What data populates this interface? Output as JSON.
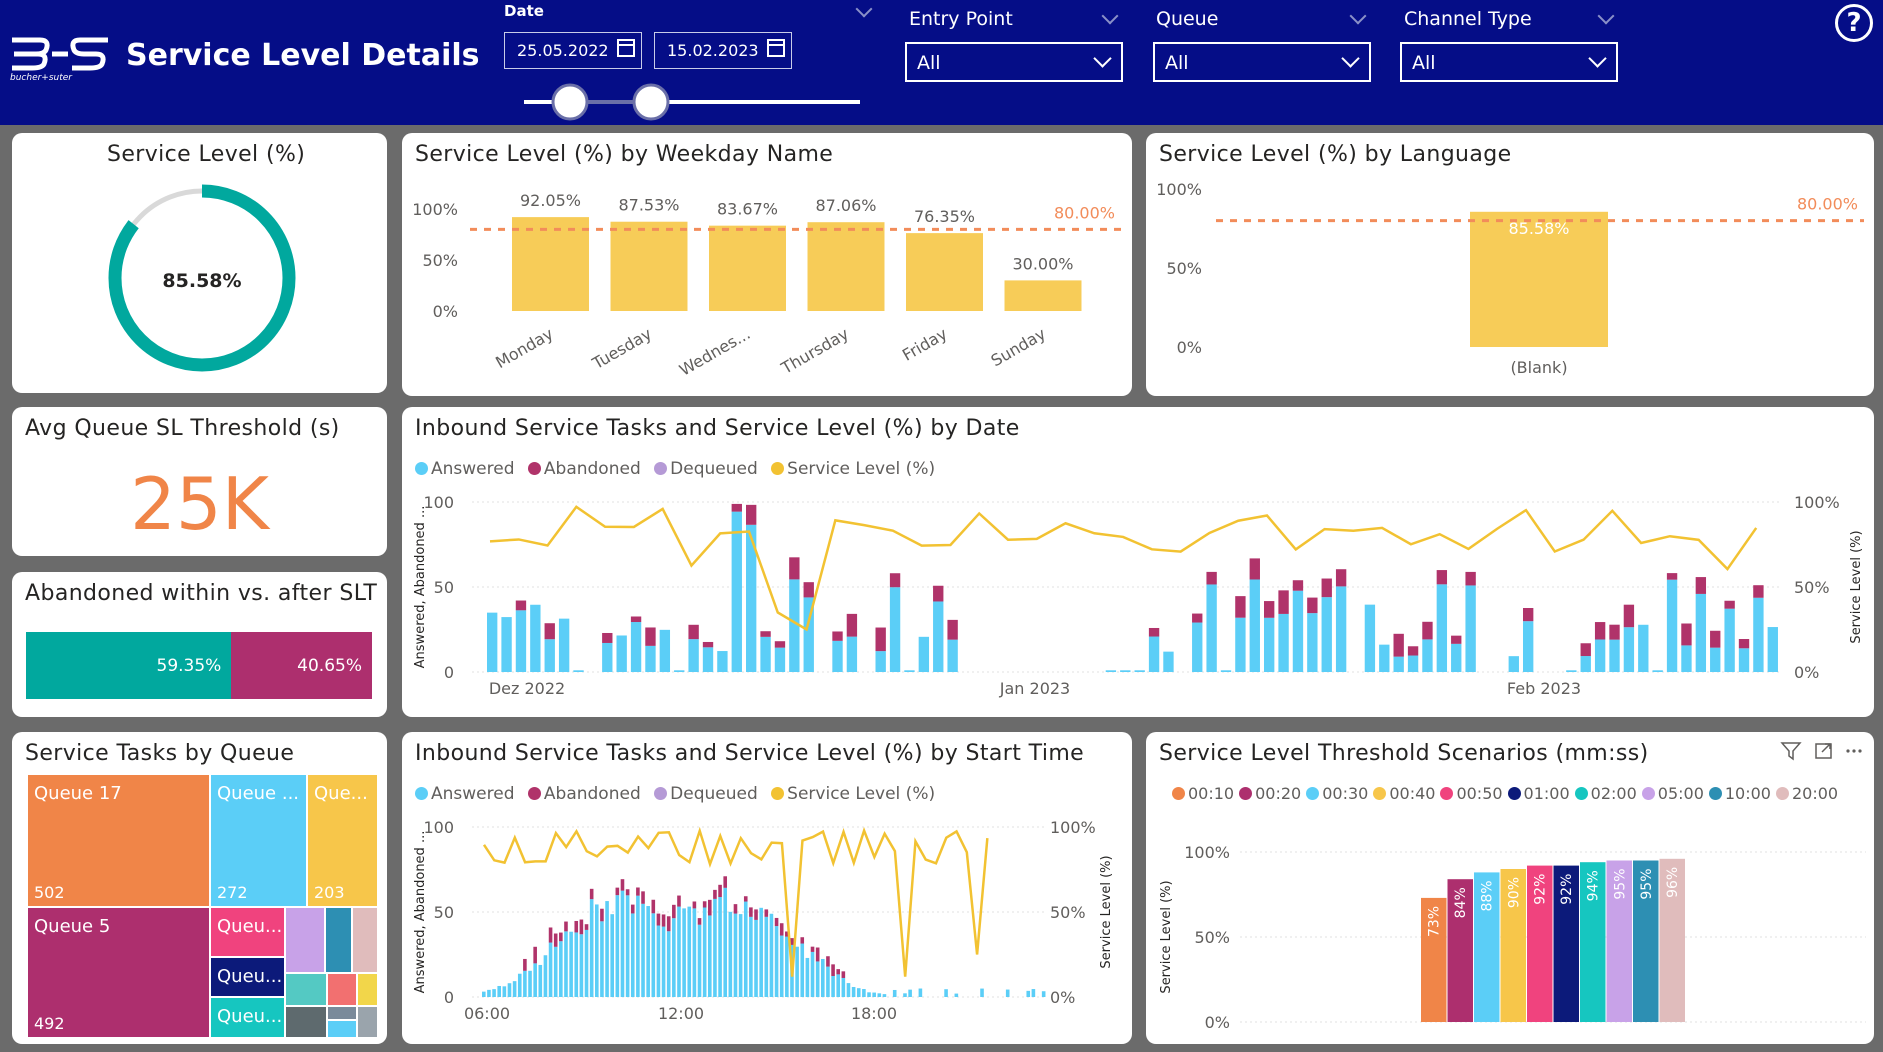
{
  "header": {
    "title": "Service Level Details",
    "logo_text": "bucher+suter",
    "date": {
      "label": "Date",
      "start": "25.05.2022",
      "end": "15.02.2023"
    },
    "entry_point": {
      "label": "Entry Point",
      "value": "All"
    },
    "queue": {
      "label": "Queue",
      "value": "All"
    },
    "channel_type": {
      "label": "Channel Type",
      "value": "All"
    },
    "help": "?"
  },
  "colors": {
    "header": "#050d87",
    "teal": "#01a89e",
    "magenta": "#ad2f6e",
    "yellow": "#f7cc58",
    "answered": "#5bcef7",
    "abandoned": "#b0336a",
    "dequeued": "#b59ad6",
    "sl_line": "#f2c232",
    "target": "#f28c5a",
    "orange": "#f08548"
  },
  "kpi_service_level": {
    "title": "Service Level (%)",
    "value": "85.58%",
    "fraction": 0.8558
  },
  "kpi_avg_queue": {
    "title": "Avg Queue SL Threshold (s)",
    "value": "25K"
  },
  "abandoned_card": {
    "title": "Abandoned within vs. after SLT",
    "within_label": "59.35%",
    "after_label": "40.65%",
    "within": 59.35,
    "after": 40.65
  },
  "weekday_chart": {
    "title": "Service Level (%) by Weekday Name",
    "categories": [
      "Monday",
      "Tuesday",
      "Wednes...",
      "Thursday",
      "Friday",
      "Sunday"
    ],
    "values": [
      92.05,
      87.53,
      83.67,
      87.06,
      76.35,
      30.0
    ],
    "labels": [
      "92.05%",
      "87.53%",
      "83.67%",
      "87.06%",
      "76.35%",
      "30.00%"
    ],
    "target": 80,
    "target_label": "80.00%",
    "yticks": [
      "100%",
      "50%",
      "0%"
    ]
  },
  "language_chart": {
    "title": "Service Level (%) by Language",
    "categories": [
      "(Blank)"
    ],
    "values": [
      85.58
    ],
    "label": "85.58%",
    "target": 80,
    "target_label": "80.00%",
    "yticks": [
      "100%",
      "50%",
      "0%"
    ]
  },
  "date_chart": {
    "title": "Inbound Service Tasks and Service Level (%) by Date",
    "legend": [
      "Answered",
      "Abandoned",
      "Dequeued",
      "Service Level (%)"
    ],
    "y_left_title": "Answered, Abandoned ...",
    "y_right_title": "Service Level (%)",
    "y_left_ticks": [
      "100",
      "50",
      "0"
    ],
    "y_right_ticks": [
      "100%",
      "50%",
      "0%"
    ],
    "x_labels": [
      "Dez 2022",
      "Jan 2023",
      "Feb 2023"
    ]
  },
  "treemap": {
    "title": "Service Tasks by Queue",
    "items": [
      {
        "label": "Queue 17",
        "value": "502"
      },
      {
        "label": "Queue ...",
        "value": "272"
      },
      {
        "label": "Que...",
        "value": "203"
      },
      {
        "label": "Queue 5",
        "value": "492"
      },
      {
        "label": "Queu...",
        "value": ""
      },
      {
        "label": "Queu...",
        "value": ""
      },
      {
        "label": "Queu...",
        "value": ""
      }
    ]
  },
  "start_time_chart": {
    "title": "Inbound Service Tasks and Service Level (%) by Start Time",
    "legend": [
      "Answered",
      "Abandoned",
      "Dequeued",
      "Service Level (%)"
    ],
    "y_left_title": "Answered, Abandoned ...",
    "y_right_title": "Service Level (%)",
    "y_left_ticks": [
      "100",
      "50",
      "0"
    ],
    "y_right_ticks": [
      "100%",
      "50%",
      "0%"
    ],
    "x_labels": [
      "06:00",
      "12:00",
      "18:00"
    ]
  },
  "chart_data": [
    {
      "type": "bar",
      "title": "Service Level (%) by Weekday Name",
      "categories": [
        "Monday",
        "Tuesday",
        "Wednes...",
        "Thursday",
        "Friday",
        "Sunday"
      ],
      "values": [
        92.05,
        87.53,
        83.67,
        87.06,
        76.35,
        30.0
      ],
      "ylim": [
        0,
        100
      ],
      "reference_line": 80
    },
    {
      "type": "bar",
      "title": "Service Level (%) by Language",
      "categories": [
        "(Blank)"
      ],
      "values": [
        85.58
      ],
      "ylim": [
        0,
        100
      ],
      "reference_line": 80
    },
    {
      "type": "bar",
      "title": "Service Level Threshold Scenarios (mm:ss)",
      "categories": [
        "00:10",
        "00:20",
        "00:30",
        "00:40",
        "00:50",
        "01:00",
        "02:00",
        "05:00",
        "10:00",
        "20:00"
      ],
      "values": [
        73,
        84,
        88,
        90,
        92,
        92,
        94,
        95,
        95,
        96
      ],
      "labels": [
        "73%",
        "84%",
        "88%",
        "90%",
        "92%",
        "92%",
        "94%",
        "95%",
        "95%",
        "96%"
      ],
      "colors": [
        "#f08548",
        "#ad2f6e",
        "#5bcef7",
        "#f7c64a",
        "#f0437e",
        "#0c1a7a",
        "#16c6c0",
        "#c8a2e8",
        "#2d8fb3",
        "#e0bcbc"
      ],
      "ylabel": "Service Level (%)",
      "yticks": [
        "100%",
        "50%",
        "0%"
      ],
      "ylim": [
        0,
        100
      ]
    }
  ]
}
